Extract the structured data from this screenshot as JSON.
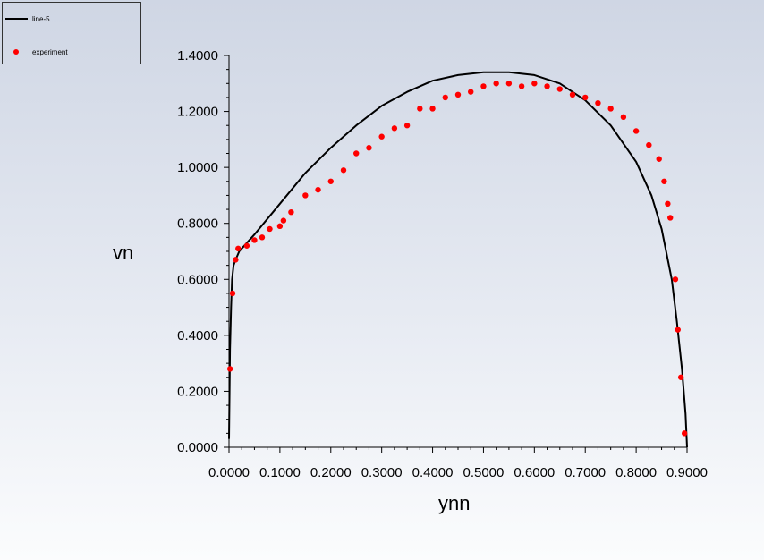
{
  "legend": {
    "items": [
      {
        "label": "line-5",
        "marker": "line",
        "color": "#000000"
      },
      {
        "label": "experiment",
        "marker": "circle",
        "color": "#ff0000"
      }
    ]
  },
  "chart_data": {
    "type": "line",
    "title": "",
    "xlabel": "ynn",
    "ylabel": "vn",
    "xlim": [
      0,
      0.9
    ],
    "ylim": [
      0,
      1.4
    ],
    "x_tick_labels": [
      "0.0000",
      "0.1000",
      "0.2000",
      "0.3000",
      "0.4000",
      "0.5000",
      "0.6000",
      "0.7000",
      "0.8000",
      "0.9000"
    ],
    "y_tick_labels": [
      "0.0000",
      "0.2000",
      "0.4000",
      "0.6000",
      "0.8000",
      "1.0000",
      "1.2000",
      "1.4000"
    ],
    "grid": false,
    "legend_position": "top-left",
    "series": [
      {
        "name": "line-5",
        "kind": "line",
        "color": "#000000",
        "x": [
          0.0,
          0.001,
          0.002,
          0.004,
          0.006,
          0.009,
          0.013,
          0.02,
          0.03,
          0.05,
          0.1,
          0.15,
          0.2,
          0.25,
          0.3,
          0.35,
          0.4,
          0.45,
          0.5,
          0.55,
          0.6,
          0.65,
          0.7,
          0.75,
          0.8,
          0.83,
          0.85,
          0.87,
          0.88,
          0.89,
          0.897,
          0.9
        ],
        "y": [
          0.03,
          0.2,
          0.35,
          0.5,
          0.6,
          0.65,
          0.67,
          0.7,
          0.72,
          0.76,
          0.87,
          0.98,
          1.07,
          1.15,
          1.22,
          1.27,
          1.31,
          1.33,
          1.34,
          1.34,
          1.33,
          1.3,
          1.24,
          1.15,
          1.02,
          0.9,
          0.78,
          0.6,
          0.45,
          0.28,
          0.12,
          0.0
        ]
      },
      {
        "name": "experiment",
        "kind": "scatter",
        "color": "#ff0000",
        "x": [
          0.002,
          0.007,
          0.013,
          0.018,
          0.035,
          0.05,
          0.065,
          0.08,
          0.1,
          0.107,
          0.122,
          0.15,
          0.175,
          0.2,
          0.225,
          0.25,
          0.275,
          0.3,
          0.325,
          0.35,
          0.375,
          0.4,
          0.425,
          0.45,
          0.475,
          0.5,
          0.525,
          0.55,
          0.575,
          0.6,
          0.625,
          0.65,
          0.675,
          0.7,
          0.725,
          0.75,
          0.775,
          0.8,
          0.825,
          0.845,
          0.855,
          0.862,
          0.867,
          0.877,
          0.882,
          0.888,
          0.895
        ],
        "y": [
          0.28,
          0.55,
          0.67,
          0.71,
          0.72,
          0.74,
          0.75,
          0.78,
          0.79,
          0.81,
          0.84,
          0.9,
          0.92,
          0.95,
          0.99,
          1.05,
          1.07,
          1.11,
          1.14,
          1.15,
          1.21,
          1.21,
          1.25,
          1.26,
          1.27,
          1.29,
          1.3,
          1.3,
          1.29,
          1.3,
          1.29,
          1.28,
          1.26,
          1.25,
          1.23,
          1.21,
          1.18,
          1.13,
          1.08,
          1.03,
          0.95,
          0.87,
          0.82,
          0.6,
          0.42,
          0.25,
          0.05
        ]
      }
    ]
  }
}
